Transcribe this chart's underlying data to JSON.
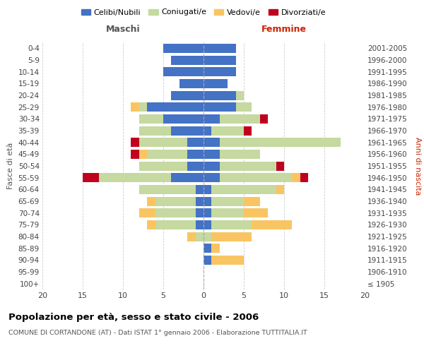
{
  "age_groups": [
    "100+",
    "95-99",
    "90-94",
    "85-89",
    "80-84",
    "75-79",
    "70-74",
    "65-69",
    "60-64",
    "55-59",
    "50-54",
    "45-49",
    "40-44",
    "35-39",
    "30-34",
    "25-29",
    "20-24",
    "15-19",
    "10-14",
    "5-9",
    "0-4"
  ],
  "birth_years": [
    "≤ 1905",
    "1906-1910",
    "1911-1915",
    "1916-1920",
    "1921-1925",
    "1926-1930",
    "1931-1935",
    "1936-1940",
    "1941-1945",
    "1946-1950",
    "1951-1955",
    "1956-1960",
    "1961-1965",
    "1966-1970",
    "1971-1975",
    "1976-1980",
    "1981-1985",
    "1986-1990",
    "1991-1995",
    "1996-2000",
    "2001-2005"
  ],
  "male_celibi": [
    0,
    0,
    0,
    0,
    0,
    1,
    1,
    1,
    1,
    4,
    2,
    2,
    2,
    4,
    5,
    7,
    4,
    3,
    5,
    4,
    5
  ],
  "male_coniugati": [
    0,
    0,
    0,
    0,
    1,
    5,
    5,
    5,
    7,
    9,
    6,
    5,
    6,
    4,
    3,
    1,
    0,
    0,
    0,
    0,
    0
  ],
  "male_vedovi": [
    0,
    0,
    0,
    0,
    1,
    1,
    2,
    1,
    0,
    0,
    0,
    1,
    0,
    0,
    0,
    1,
    0,
    0,
    0,
    0,
    0
  ],
  "male_divorziati": [
    0,
    0,
    0,
    0,
    0,
    0,
    0,
    0,
    0,
    2,
    0,
    1,
    1,
    0,
    0,
    0,
    0,
    0,
    0,
    0,
    0
  ],
  "female_celibi": [
    0,
    0,
    1,
    1,
    0,
    1,
    1,
    1,
    1,
    2,
    2,
    2,
    2,
    1,
    2,
    4,
    4,
    3,
    4,
    4,
    4
  ],
  "female_coniugati": [
    0,
    0,
    0,
    0,
    1,
    5,
    4,
    4,
    8,
    9,
    7,
    5,
    15,
    4,
    5,
    2,
    1,
    0,
    0,
    0,
    0
  ],
  "female_vedovi": [
    0,
    0,
    4,
    1,
    5,
    5,
    3,
    2,
    1,
    1,
    0,
    0,
    0,
    0,
    0,
    0,
    0,
    0,
    0,
    0,
    0
  ],
  "female_divorziati": [
    0,
    0,
    0,
    0,
    0,
    0,
    0,
    0,
    0,
    1,
    1,
    0,
    0,
    1,
    1,
    0,
    0,
    0,
    0,
    0,
    0
  ],
  "color_celibi": "#4472c4",
  "color_coniugati": "#c5d9a0",
  "color_vedovi": "#f9c562",
  "color_divorziati": "#c0001e",
  "title": "Popolazione per età, sesso e stato civile - 2006",
  "subtitle": "COMUNE DI CORTANDONE (AT) - Dati ISTAT 1° gennaio 2006 - Elaborazione TUTTITALIA.IT",
  "xlabel_left": "Maschi",
  "xlabel_right": "Femmine",
  "ylabel_left": "Fasce di età",
  "ylabel_right": "Anni di nascita",
  "xlim": 20,
  "xticks": [
    20,
    15,
    10,
    5,
    0,
    5,
    10,
    15,
    20
  ]
}
